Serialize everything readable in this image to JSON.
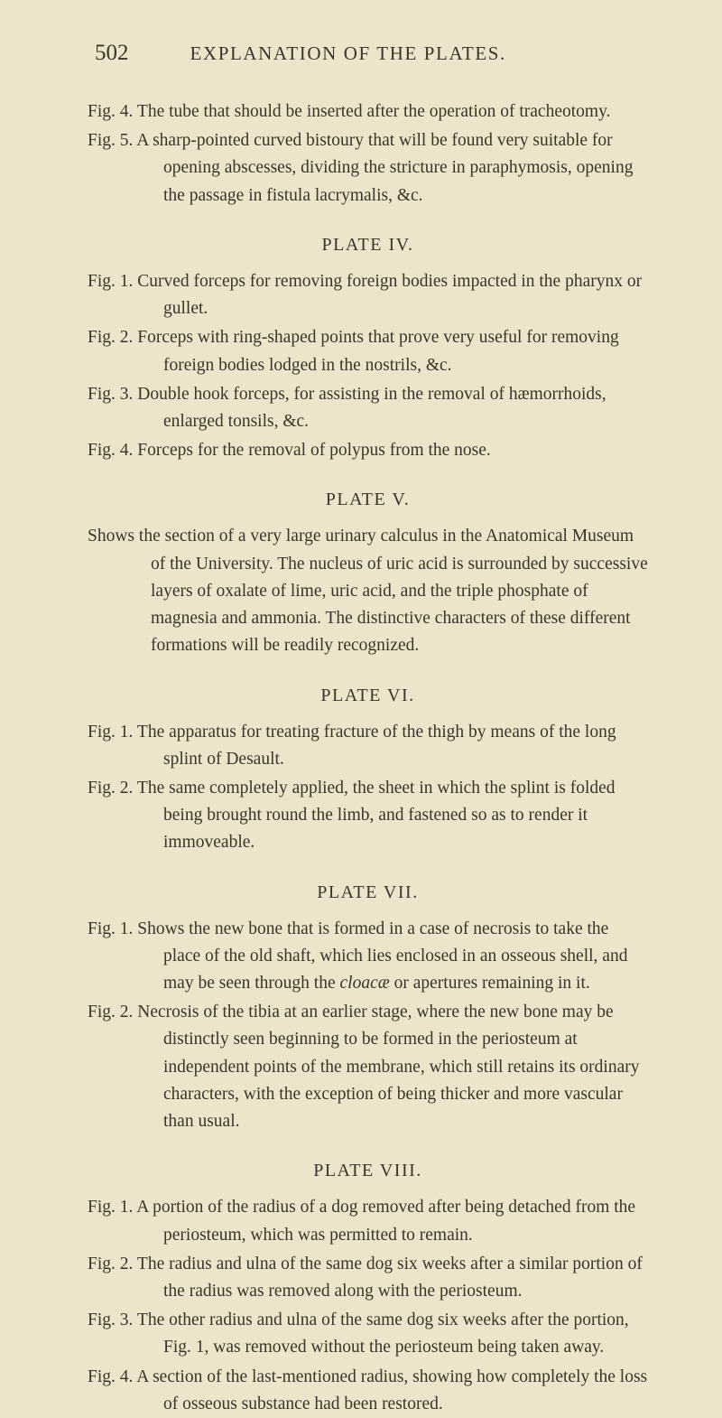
{
  "header": {
    "page_number": "502",
    "title": "EXPLANATION OF THE PLATES."
  },
  "intro_figs": [
    {
      "label": "Fig. 4.",
      "text": "The tube that should be inserted after the operation of tracheotomy."
    },
    {
      "label": "Fig. 5.",
      "text": "A sharp-pointed curved bistoury that will be found very suitable for opening abscesses, dividing the stricture in paraphymosis, opening the passage in fistula lacrymalis, &c."
    }
  ],
  "plate4": {
    "heading": "PLATE IV.",
    "figs": [
      {
        "label": "Fig. 1.",
        "text": "Curved forceps for removing foreign bodies impacted in the pharynx or gullet."
      },
      {
        "label": "Fig. 2.",
        "text": "Forceps with ring-shaped points that prove very useful for removing foreign bodies lodged in the nostrils, &c."
      },
      {
        "label": "Fig. 3.",
        "text": "Double hook forceps, for assisting in the removal of hæmorrhoids, enlarged tonsils, &c."
      },
      {
        "label": "Fig. 4.",
        "text": "Forceps for the removal of polypus from the nose."
      }
    ]
  },
  "plate5": {
    "heading": "PLATE V.",
    "shows": {
      "label": "Shows",
      "text": "the section of a very large urinary calculus in the Anatomical Museum of the University. The nucleus of uric acid is surrounded by successive layers of oxalate of lime, uric acid, and the triple phosphate of magnesia and ammonia. The distinctive characters of these different formations will be readily recognized."
    }
  },
  "plate6": {
    "heading": "PLATE VI.",
    "figs": [
      {
        "label": "Fig. 1.",
        "text": "The apparatus for treating fracture of the thigh by means of the long splint of Desault."
      },
      {
        "label": "Fig. 2.",
        "text": "The same completely applied, the sheet in which the splint is folded being brought round the limb, and fastened so as to render it immoveable."
      }
    ]
  },
  "plate7": {
    "heading": "PLATE VII.",
    "figs": [
      {
        "label": "Fig. 1.",
        "text": "Shows the new bone that is formed in a case of necrosis to take the place of the old shaft, which lies enclosed in an osseous shell, and may be seen through the "
      },
      {
        "label": "Fig. 2.",
        "text": "Necrosis of the tibia at an earlier stage, where the new bone may be distinctly seen beginning to be formed in the periosteum at independent points of the membrane, which still retains its ordinary characters, with the exception of being thicker and more vascular than usual."
      }
    ],
    "cloacae_word": "cloacæ",
    "fig1_after": " or apertures remaining in it."
  },
  "plate8": {
    "heading": "PLATE VIII.",
    "figs": [
      {
        "label": "Fig. 1.",
        "text": "A portion of the radius of a dog removed after being detached from the periosteum, which was permitted to remain."
      },
      {
        "label": "Fig. 2.",
        "text": "The radius and ulna of the same dog six weeks after a similar portion of the radius was removed along with the periosteum."
      },
      {
        "label": "Fig. 3.",
        "text": "The other radius and ulna of the same dog six weeks after the portion, Fig. 1, was removed without the periosteum being taken away."
      },
      {
        "label": "Fig. 4.",
        "text": "A section of the last-mentioned radius, showing how completely the loss of osseous substance had been restored."
      }
    ]
  }
}
